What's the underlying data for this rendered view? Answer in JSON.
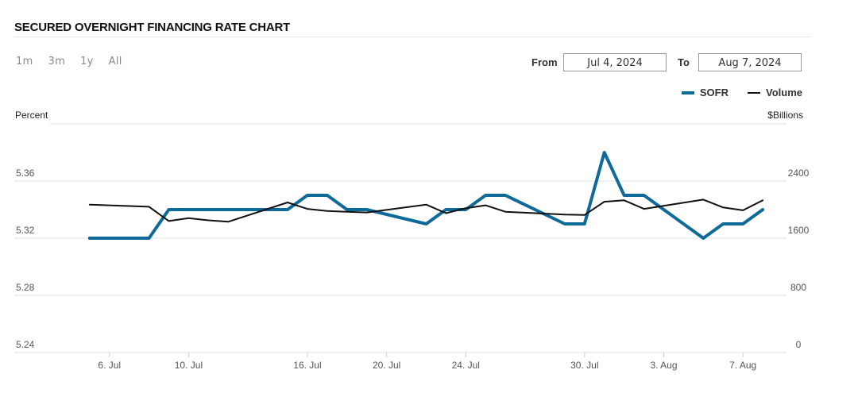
{
  "header": {
    "title": "SECURED OVERNIGHT FINANCING RATE CHART"
  },
  "ranges": [
    "1m",
    "3m",
    "1y",
    "All"
  ],
  "date_range": {
    "from_label": "From",
    "from_value": "Jul 4, 2024",
    "to_label": "To",
    "to_value": "Aug 7, 2024"
  },
  "colors": {
    "sofr": "#0d6a99",
    "volume": "#111111",
    "grid": "#dde3ea"
  },
  "chart_data": {
    "type": "line",
    "title": "SECURED OVERNIGHT FINANCING RATE CHART",
    "left_axis_label": "Percent",
    "right_axis_label": "$Billions",
    "left_ylim": [
      5.24,
      5.4
    ],
    "right_ylim": [
      0,
      3200
    ],
    "left_ticks": [
      "5.36",
      "5.32",
      "5.28",
      "5.24"
    ],
    "left_tick_values": [
      5.36,
      5.32,
      5.28,
      5.24
    ],
    "right_ticks": [
      "2400",
      "1600",
      "800",
      "0"
    ],
    "right_tick_values": [
      2400,
      1600,
      800,
      0
    ],
    "x_tick_labels": [
      "6. Jul",
      "10. Jul",
      "16. Jul",
      "20. Jul",
      "24. Jul",
      "30. Jul",
      "3. Aug",
      "7. Aug"
    ],
    "x_tick_dates": [
      "2024-07-06",
      "2024-07-10",
      "2024-07-16",
      "2024-07-20",
      "2024-07-24",
      "2024-07-30",
      "2024-08-03",
      "2024-08-07"
    ],
    "x_range": [
      "2024-07-03",
      "2024-08-09"
    ],
    "legend_position": "top-right",
    "series": [
      {
        "name": "SOFR",
        "axis": "left",
        "x": [
          "2024-07-05",
          "2024-07-08",
          "2024-07-09",
          "2024-07-10",
          "2024-07-11",
          "2024-07-12",
          "2024-07-15",
          "2024-07-16",
          "2024-07-17",
          "2024-07-18",
          "2024-07-19",
          "2024-07-22",
          "2024-07-23",
          "2024-07-24",
          "2024-07-25",
          "2024-07-26",
          "2024-07-29",
          "2024-07-30",
          "2024-07-31",
          "2024-08-01",
          "2024-08-02",
          "2024-08-05",
          "2024-08-06",
          "2024-08-07",
          "2024-08-08"
        ],
        "values": [
          5.32,
          5.32,
          5.34,
          5.34,
          5.34,
          5.34,
          5.34,
          5.35,
          5.35,
          5.34,
          5.34,
          5.33,
          5.34,
          5.34,
          5.35,
          5.35,
          5.33,
          5.33,
          5.38,
          5.35,
          5.35,
          5.32,
          5.33,
          5.33,
          5.34
        ]
      },
      {
        "name": "Volume",
        "axis": "right",
        "x": [
          "2024-07-05",
          "2024-07-08",
          "2024-07-09",
          "2024-07-10",
          "2024-07-11",
          "2024-07-12",
          "2024-07-15",
          "2024-07-16",
          "2024-07-17",
          "2024-07-18",
          "2024-07-19",
          "2024-07-22",
          "2024-07-23",
          "2024-07-24",
          "2024-07-25",
          "2024-07-26",
          "2024-07-29",
          "2024-07-30",
          "2024-07-31",
          "2024-08-01",
          "2024-08-02",
          "2024-08-05",
          "2024-08-06",
          "2024-08-07",
          "2024-08-08"
        ],
        "values": [
          2070,
          2040,
          1840,
          1880,
          1850,
          1830,
          2100,
          2010,
          1980,
          1970,
          1960,
          2070,
          1950,
          2020,
          2060,
          1970,
          1930,
          1925,
          2110,
          2130,
          2010,
          2140,
          2030,
          1990,
          2130
        ]
      }
    ]
  }
}
